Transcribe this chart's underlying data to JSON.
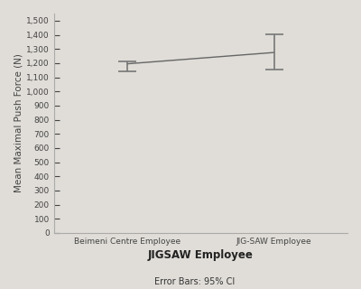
{
  "categories": [
    "Beimeni Centre Employee",
    "JIG-SAW Employee"
  ],
  "means": [
    1195,
    1275
  ],
  "ci_lower": [
    1140,
    1155
  ],
  "ci_upper": [
    1215,
    1405
  ],
  "xlabel": "JIGSAW Employee",
  "ylabel": "Mean Maximal Push Force (N)",
  "footnote": "Error Bars: 95% CI",
  "ylim": [
    0,
    1550
  ],
  "yticks": [
    0,
    100,
    200,
    300,
    400,
    500,
    600,
    700,
    800,
    900,
    1000,
    1100,
    1200,
    1300,
    1400,
    1500
  ],
  "background_color": "#e0ddd8",
  "plot_bg_color": "#e0ddd8",
  "line_color": "#666666",
  "errorbar_color": "#777777",
  "xlabel_fontsize": 8.5,
  "ylabel_fontsize": 7.5,
  "tick_fontsize": 6.5,
  "footnote_fontsize": 7
}
